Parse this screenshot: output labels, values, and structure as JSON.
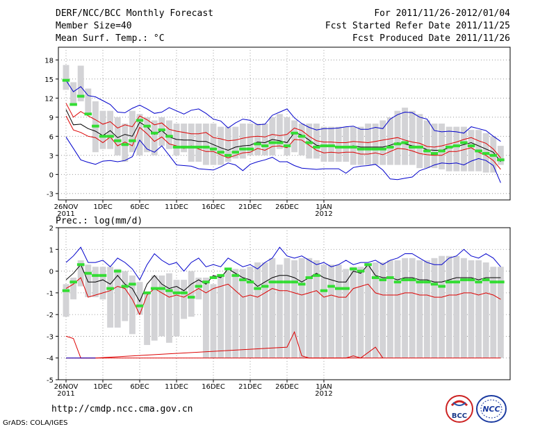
{
  "header": {
    "title": "DERF/NCC/BCC Monthly Forecast",
    "member": "Member Size=40",
    "variable": "Mean Surf. Temp.: °C",
    "period": "For 2011/11/26-2012/01/04",
    "started": "Fcst Started Refer Date 2011/11/25",
    "produced": "Fcst Produced Date 2011/11/26"
  },
  "url": "http://cmdp.ncc.cma.gov.cn",
  "grads": "GrADS: COLA/IGES",
  "logos": {
    "bcc": "BCC",
    "ncc": "NCC"
  },
  "colors": {
    "box": "#d3d3d6",
    "median": "#33dd33",
    "mean": "#000000",
    "inner": "#dd0000",
    "outer": "#0000cc"
  },
  "chart_data": [
    {
      "type": "line",
      "title": "Mean Surf. Temp.: °C",
      "x_tick_labels": [
        "26NOV",
        "1DEC",
        "6DEC",
        "11DEC",
        "16DEC",
        "21DEC",
        "26DEC",
        "1JAN"
      ],
      "x_tick_years": [
        "2011",
        "",
        "",
        "",
        "",
        "",
        "",
        "2012"
      ],
      "ylim": [
        -4,
        20
      ],
      "yticks": [
        -3,
        0,
        3,
        6,
        9,
        12,
        15,
        18
      ],
      "box_low": [
        13.3,
        10.8,
        11.5,
        9.5,
        3.5,
        4.0,
        4.0,
        3.0,
        2.0,
        3.5,
        3.0,
        3.5,
        3.0,
        4.5,
        4.0,
        3.0,
        3.5,
        2.0,
        2.0,
        1.5,
        1.5,
        1.5,
        2.0,
        2.5,
        2.5,
        3.0,
        3.0,
        3.0,
        3.0,
        4.0,
        3.0,
        3.5,
        3.0,
        2.5,
        2.5,
        2.0,
        2.0,
        2.0,
        2.0,
        1.5,
        1.5,
        1.5,
        1.5,
        1.5,
        1.5,
        1.5,
        1.5,
        1.5,
        1.0,
        1.0,
        1.0,
        0.8,
        0.5,
        0.5,
        0.5,
        0.5,
        0.5,
        0.3,
        0.3,
        1.5
      ],
      "box_high": [
        17.2,
        14.5,
        17.1,
        13.5,
        11.5,
        10.0,
        10.0,
        9.0,
        8.0,
        10.0,
        9.5,
        9.0,
        8.5,
        9.0,
        8.5,
        8.0,
        8.0,
        8.0,
        8.0,
        8.0,
        8.0,
        7.5,
        7.5,
        7.5,
        8.0,
        8.0,
        8.0,
        8.0,
        9.0,
        9.5,
        9.0,
        8.5,
        8.0,
        8.0,
        8.0,
        7.5,
        7.5,
        7.5,
        7.5,
        7.5,
        7.5,
        8.0,
        8.0,
        8.5,
        9.0,
        10.0,
        10.5,
        10.0,
        9.5,
        8.5,
        8.0,
        8.0,
        7.5,
        7.5,
        7.5,
        7.0,
        7.0,
        6.5,
        6.0,
        4.5
      ],
      "median": [
        14.8,
        11.0,
        12.3,
        9.5,
        7.6,
        6.0,
        6.0,
        5.3,
        4.7,
        5.3,
        8.5,
        7.6,
        6.5,
        7.0,
        6.0,
        4.3,
        4.3,
        4.3,
        4.3,
        4.3,
        4.0,
        3.5,
        3.0,
        3.5,
        4.0,
        4.0,
        4.8,
        4.5,
        5.0,
        5.0,
        4.5,
        6.5,
        6.0,
        5.0,
        4.3,
        4.5,
        4.5,
        4.3,
        4.3,
        4.3,
        4.0,
        4.0,
        4.0,
        4.0,
        4.3,
        4.8,
        5.0,
        4.3,
        4.3,
        3.7,
        3.3,
        3.7,
        4.3,
        4.5,
        5.0,
        4.5,
        3.7,
        3.3,
        3.0,
        2.3
      ],
      "ens_mean": [
        10.2,
        7.8,
        7.9,
        7.2,
        6.8,
        6.1,
        6.9,
        5.8,
        6.3,
        6.0,
        8.2,
        7.5,
        6.3,
        6.9,
        5.9,
        5.5,
        5.4,
        5.4,
        5.2,
        5.2,
        4.7,
        4.2,
        3.8,
        4.3,
        4.5,
        4.6,
        5.1,
        5.0,
        5.5,
        5.3,
        5.0,
        6.6,
        6.2,
        5.4,
        4.6,
        4.4,
        4.5,
        4.4,
        4.3,
        4.5,
        4.3,
        4.3,
        4.3,
        4.3,
        4.6,
        5.0,
        4.8,
        4.5,
        4.4,
        3.9,
        3.8,
        3.8,
        4.2,
        4.4,
        4.7,
        5.0,
        4.5,
        4.0,
        3.5,
        2.0
      ],
      "inner_high": [
        11.2,
        9.0,
        9.9,
        9.2,
        8.6,
        7.9,
        8.3,
        7.3,
        7.8,
        7.5,
        9.2,
        8.6,
        7.8,
        8.1,
        7.1,
        6.8,
        6.6,
        6.4,
        6.4,
        6.6,
        5.8,
        5.6,
        5.3,
        5.4,
        5.7,
        5.9,
        6.0,
        5.9,
        6.3,
        6.1,
        6.3,
        7.3,
        6.9,
        6.0,
        5.3,
        5.1,
        5.1,
        5.0,
        5.0,
        5.2,
        5.1,
        5.0,
        5.2,
        5.4,
        5.6,
        5.8,
        5.4,
        5.1,
        4.9,
        4.4,
        4.3,
        4.5,
        4.8,
        5.1,
        5.5,
        5.8,
        5.3,
        4.9,
        4.0,
        2.6
      ],
      "inner_low": [
        9.2,
        7.0,
        6.6,
        6.0,
        5.8,
        5.0,
        5.9,
        4.5,
        5.1,
        4.5,
        7.4,
        6.4,
        5.2,
        5.9,
        4.8,
        4.5,
        4.1,
        4.5,
        4.0,
        3.6,
        3.6,
        3.1,
        2.6,
        3.0,
        3.4,
        3.5,
        4.1,
        3.8,
        4.4,
        4.5,
        4.2,
        5.5,
        5.4,
        4.6,
        3.8,
        3.4,
        3.5,
        3.4,
        3.5,
        3.5,
        3.2,
        3.2,
        3.4,
        3.1,
        3.6,
        4.1,
        4.0,
        3.7,
        3.3,
        3.1,
        3.0,
        3.0,
        3.6,
        3.6,
        3.9,
        4.2,
        3.5,
        3.0,
        2.2,
        0.8
      ],
      "outer_high": [
        14.8,
        13.0,
        13.8,
        12.4,
        12.2,
        11.6,
        11.0,
        9.8,
        9.7,
        10.4,
        10.9,
        10.3,
        9.6,
        9.8,
        10.5,
        10.0,
        9.5,
        10.1,
        10.3,
        9.6,
        8.7,
        8.4,
        7.3,
        8.1,
        8.7,
        8.5,
        7.8,
        7.9,
        9.3,
        9.8,
        10.3,
        8.9,
        8.0,
        7.4,
        7.0,
        7.2,
        7.2,
        7.3,
        7.5,
        7.6,
        7.1,
        7.1,
        7.4,
        7.2,
        8.7,
        9.4,
        9.8,
        9.7,
        9.0,
        8.7,
        6.9,
        6.7,
        6.8,
        6.7,
        6.5,
        7.5,
        7.2,
        6.9,
        6.0,
        5.2
      ],
      "outer_low": [
        5.9,
        4.1,
        2.3,
        1.9,
        1.6,
        2.1,
        2.2,
        2.0,
        2.2,
        2.8,
        5.4,
        4.0,
        3.5,
        4.5,
        3.0,
        1.5,
        1.4,
        1.3,
        0.9,
        0.8,
        0.7,
        1.2,
        1.8,
        1.5,
        0.6,
        1.6,
        2.0,
        2.3,
        2.7,
        2.0,
        2.0,
        1.4,
        1.0,
        0.9,
        0.8,
        0.9,
        0.9,
        0.9,
        0.2,
        1.1,
        1.3,
        1.4,
        1.6,
        0.7,
        -0.7,
        -0.8,
        -0.6,
        -0.4,
        0.6,
        1.0,
        1.5,
        1.8,
        1.7,
        1.8,
        1.5,
        2.1,
        2.5,
        2.2,
        1.4,
        -1.3
      ]
    },
    {
      "type": "line",
      "title": "Prec.: log(mm/d)",
      "x_tick_labels": [
        "26NOV",
        "1DEC",
        "6DEC",
        "11DEC",
        "16DEC",
        "21DEC",
        "26DEC",
        "1JAN"
      ],
      "x_tick_years": [
        "2011",
        "",
        "",
        "",
        "",
        "",
        "",
        "2012"
      ],
      "ylim": [
        -5,
        2
      ],
      "yticks": [
        -5,
        -4,
        -3,
        -2,
        -1,
        0,
        1,
        2
      ],
      "box_low": [
        -2.1,
        -1.3,
        -0.7,
        -1.2,
        -1.2,
        -1.3,
        -2.6,
        -2.6,
        -2.3,
        -2.9,
        -2.0,
        -3.4,
        -3.2,
        -3.0,
        -3.3,
        -3.0,
        -2.2,
        -2.1,
        -1.3,
        -4.0,
        -4.0,
        -4.0,
        -4.0,
        -4.0,
        -4.0,
        -4.0,
        -4.0,
        -4.0,
        -4.0,
        -4.0,
        -4.0,
        -4.0,
        -4.0,
        -4.0,
        -4.0,
        -4.0,
        -4.0,
        -4.0,
        -4.0,
        -4.0,
        -4.0,
        -4.0,
        -4.0,
        -4.0,
        -4.0,
        -4.0,
        -4.0,
        -4.0,
        -4.0,
        -4.0,
        -4.0,
        -4.0,
        -4.0,
        -4.0,
        -4.0,
        -4.0,
        -4.0,
        -4.0,
        -4.0,
        -4.0
      ],
      "box_high": [
        -0.6,
        -0.3,
        0.5,
        0.3,
        0.2,
        0.2,
        0.2,
        0.1,
        0.0,
        -0.2,
        -0.5,
        -1.0,
        -0.2,
        -0.2,
        -0.1,
        -0.4,
        -0.4,
        0.0,
        -0.3,
        -0.3,
        -0.6,
        -0.2,
        0.0,
        0.1,
        0.1,
        0.2,
        0.4,
        0.4,
        0.6,
        0.3,
        0.6,
        0.5,
        0.6,
        0.6,
        0.5,
        0.3,
        0.3,
        0.3,
        0.1,
        0.2,
        0.2,
        0.3,
        0.4,
        0.4,
        0.5,
        0.5,
        0.6,
        0.6,
        0.5,
        0.5,
        0.6,
        0.7,
        0.7,
        0.7,
        0.6,
        0.5,
        0.5,
        0.4,
        0.2,
        0.2
      ],
      "median": [
        -0.9,
        -0.5,
        0.3,
        -0.1,
        -0.2,
        -0.2,
        -0.8,
        0.0,
        -0.7,
        -0.6,
        -1.6,
        -1.0,
        -0.8,
        -0.8,
        -0.9,
        -1.0,
        -1.0,
        -1.2,
        -0.7,
        -0.5,
        -0.3,
        -0.2,
        0.1,
        -0.2,
        -0.4,
        -0.5,
        -0.8,
        -0.7,
        -0.5,
        -0.5,
        -0.5,
        -0.5,
        -0.6,
        -0.3,
        -0.2,
        -0.9,
        -0.7,
        -0.8,
        -0.8,
        0.1,
        0.0,
        0.3,
        -0.3,
        -0.4,
        -0.3,
        -0.5,
        -0.4,
        -0.4,
        -0.5,
        -0.5,
        -0.6,
        -0.7,
        -0.5,
        -0.5,
        -0.4,
        -0.4,
        -0.5,
        -0.4,
        -0.5,
        -0.5
      ],
      "ens_mean": [
        -0.4,
        -0.1,
        0.3,
        -0.5,
        -0.5,
        -0.4,
        -0.6,
        -0.2,
        -0.6,
        -0.8,
        -1.4,
        -0.6,
        -0.2,
        -0.6,
        -0.8,
        -0.7,
        -0.9,
        -0.6,
        -0.4,
        -0.6,
        -0.2,
        -0.3,
        0.1,
        -0.1,
        -0.3,
        -0.4,
        -0.7,
        -0.5,
        -0.3,
        -0.2,
        -0.2,
        -0.3,
        -0.5,
        -0.3,
        -0.1,
        -0.3,
        -0.4,
        -0.5,
        -0.5,
        0.0,
        -0.1,
        0.3,
        -0.2,
        -0.3,
        -0.3,
        -0.4,
        -0.3,
        -0.3,
        -0.4,
        -0.4,
        -0.5,
        -0.5,
        -0.4,
        -0.3,
        -0.3,
        -0.3,
        -0.4,
        -0.3,
        -0.3,
        -0.3
      ],
      "inner_low": [
        -0.8,
        -0.6,
        -0.3,
        -1.2,
        -1.1,
        -1.0,
        -0.9,
        -0.7,
        -0.8,
        -1.3,
        -2.0,
        -1.1,
        -0.8,
        -1.0,
        -1.2,
        -1.1,
        -1.2,
        -1.0,
        -0.8,
        -1.0,
        -0.8,
        -0.7,
        -0.6,
        -0.9,
        -1.2,
        -1.1,
        -1.2,
        -1.0,
        -0.8,
        -0.9,
        -0.9,
        -1.0,
        -1.1,
        -1.0,
        -0.9,
        -1.2,
        -1.1,
        -1.2,
        -1.2,
        -0.8,
        -0.7,
        -0.6,
        -1.0,
        -1.1,
        -1.1,
        -1.1,
        -1.0,
        -1.0,
        -1.1,
        -1.1,
        -1.2,
        -1.2,
        -1.1,
        -1.1,
        -1.0,
        -1.0,
        -1.1,
        -1.0,
        -1.1,
        -1.3
      ],
      "outer_high": [
        0.4,
        0.7,
        1.1,
        0.4,
        0.4,
        0.5,
        0.2,
        0.6,
        0.4,
        0.1,
        -0.4,
        0.3,
        0.8,
        0.5,
        0.3,
        0.4,
        0.0,
        0.4,
        0.6,
        0.2,
        0.3,
        0.2,
        0.6,
        0.4,
        0.2,
        0.3,
        0.1,
        0.4,
        0.6,
        1.1,
        0.7,
        0.6,
        0.7,
        0.5,
        0.3,
        0.4,
        0.2,
        0.3,
        0.5,
        0.3,
        0.4,
        0.4,
        0.5,
        0.3,
        0.5,
        0.6,
        0.8,
        0.8,
        0.6,
        0.4,
        0.3,
        0.3,
        0.6,
        0.7,
        1.0,
        0.7,
        0.6,
        0.8,
        0.6,
        0.2
      ],
      "lower_red_x": [
        0,
        1,
        2,
        3,
        4,
        30,
        31,
        32,
        33,
        38,
        39,
        40,
        42,
        43
      ],
      "lower_red_y": [
        -3.0,
        -3.1,
        -4.0,
        -4.0,
        -4.0,
        -3.5,
        -2.8,
        -3.9,
        -4.0,
        -4.0,
        -3.9,
        -4.0,
        -3.5,
        -4.0
      ]
    }
  ]
}
